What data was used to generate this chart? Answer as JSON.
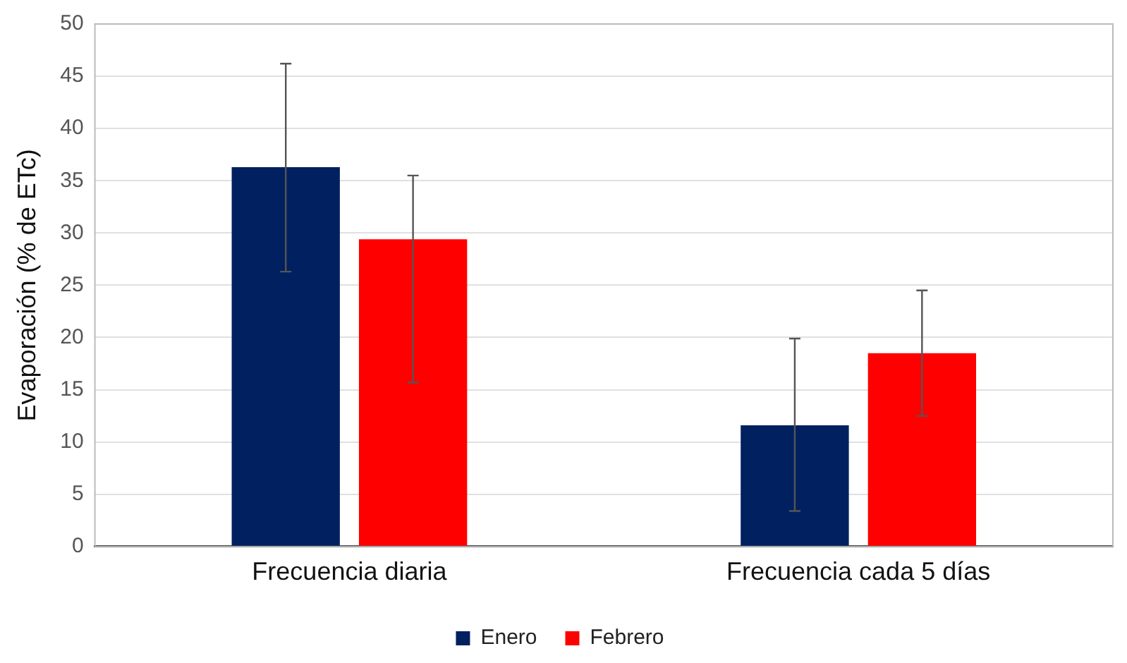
{
  "chart_data": {
    "type": "bar",
    "ylabel": "Evaporación (% de ETc)",
    "categories": [
      "Frecuencia diaria",
      "Frecuencia cada 5 días"
    ],
    "series": [
      {
        "name": "Enero",
        "color": "#002060",
        "values": [
          36.3,
          11.6
        ],
        "errors": [
          [
            26.3,
            46.2
          ],
          [
            3.4,
            19.9
          ]
        ]
      },
      {
        "name": "Febrero",
        "color": "#ff0000",
        "values": [
          29.4,
          18.5
        ],
        "errors": [
          [
            15.7,
            35.5
          ],
          [
            12.5,
            24.5
          ]
        ]
      }
    ],
    "ylim": [
      0,
      50
    ],
    "yticks": [
      0,
      5,
      10,
      15,
      20,
      25,
      30,
      35,
      40,
      45,
      50
    ],
    "grid": "y",
    "legend": "bottom"
  }
}
